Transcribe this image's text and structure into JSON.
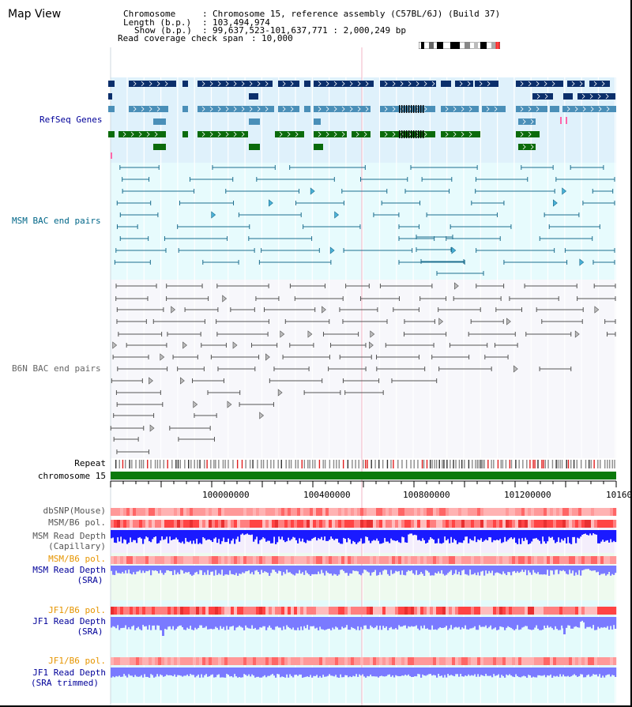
{
  "view_title": "Map View",
  "info": {
    "chromosome_label": "Chromosome",
    "chromosome_value": "Chromosome 15, reference assembly (C57BL/6J) (Build 37)",
    "length_label": "Length (b.p.)",
    "length_value": "103,494,974",
    "show_label": "Show (b.p.)",
    "show_value": "99,637,523-101,637,771 : 2,000,249 bp",
    "coverage_label": "Read coverage check span",
    "coverage_value": "10,000"
  },
  "tracks": {
    "refseq": "RefSeq Genes",
    "msm_bac": "MSM BAC end pairs",
    "b6n_bac": "B6N BAC end pairs",
    "repeat": "Repeat",
    "chromosome": "chromosome 15",
    "dbsnp": "dbSNP(Mouse)",
    "msm_pol": "MSM/B6 pol.",
    "msm_depth_cap_1": "MSM Read Depth",
    "msm_depth_cap_2": "(Capillary)",
    "msm_pol_sra": "MSM/B6 pol.",
    "msm_depth_sra_1": "MSM Read Depth",
    "msm_depth_sra_2": "(SRA)",
    "jf1_pol": "JF1/B6 pol.",
    "jf1_depth_1": "JF1 Read Depth",
    "jf1_depth_2": "(SRA)",
    "jf1_pol_trim": "JF1/B6 pol.",
    "jf1_trim_1": "JF1 Read Depth",
    "jf1_trim_2": "(SRA trimmed)"
  },
  "ruler_ticks": [
    "100000000",
    "100400000",
    "100800000",
    "101200000",
    "10160"
  ],
  "colors": {
    "gene_navy": "#0b2f6b",
    "gene_teal": "#4a8fb8",
    "gene_green": "#0b6b0b",
    "msm_pair": "#1e6f8f",
    "b6n_pair": "#555555",
    "depth_blue": "#1a1aff",
    "depth_light": "#7a7aff",
    "chrom_green": "#0b7a0b",
    "label_blue": "#000099",
    "label_teal": "#006688",
    "label_orange": "#e69500"
  }
}
